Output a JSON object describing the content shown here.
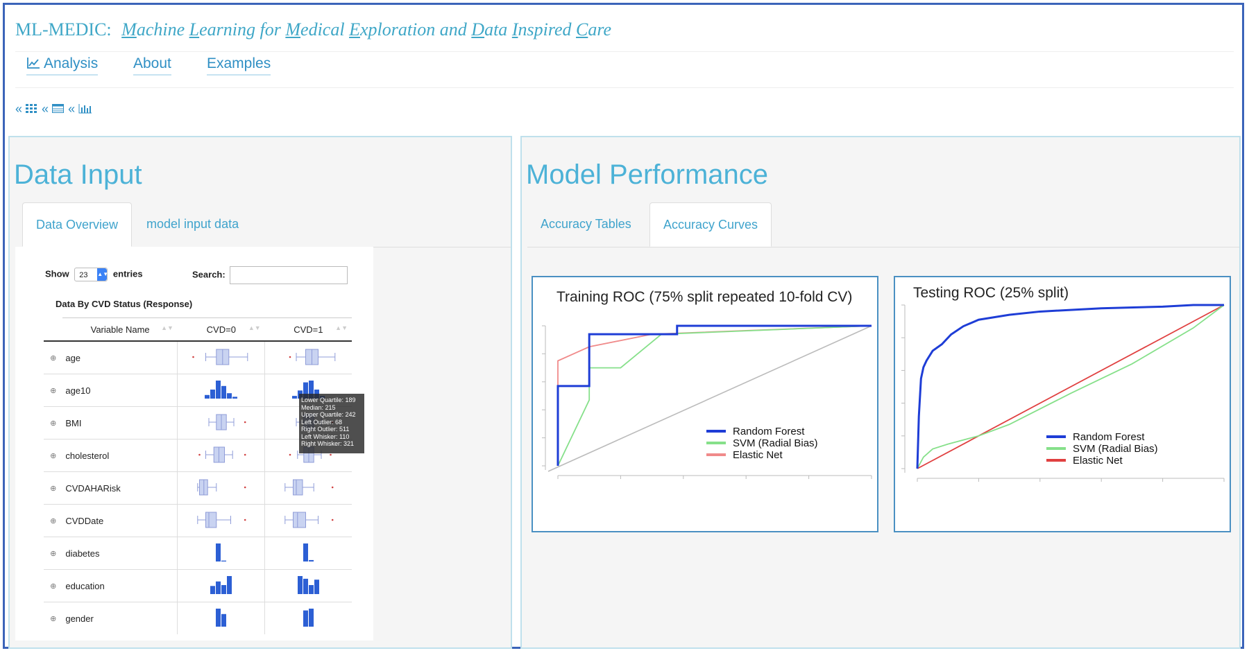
{
  "app": {
    "brand": "ML-MEDIC:",
    "subtitle_words": [
      {
        "initial": "M",
        "rest": "achine"
      },
      {
        "initial": "L",
        "rest": "earning"
      },
      {
        "plain": "for"
      },
      {
        "initial": "M",
        "rest": "edical"
      },
      {
        "initial": "E",
        "rest": "xploration"
      },
      {
        "plain": "and"
      },
      {
        "initial": "D",
        "rest": "ata"
      },
      {
        "initial": "I",
        "rest": "nspired"
      },
      {
        "initial": "C",
        "rest": "are"
      }
    ]
  },
  "nav": {
    "analysis": "Analysis",
    "about": "About",
    "examples": "Examples",
    "analysis_icon": "line-chart-icon"
  },
  "crumbs": {
    "sep": "«",
    "icons": [
      "grid-icon",
      "table-icon",
      "bar-chart-icon"
    ]
  },
  "left_panel": {
    "title": "Data Input",
    "tabs": [
      {
        "label": "Data Overview",
        "active": true
      },
      {
        "label": "model input data",
        "active": false
      }
    ],
    "show_label": "Show",
    "show_value": "23",
    "entries_label": "entries",
    "search_label": "Search:",
    "caption": "Data By CVD Status (Response)",
    "columns": [
      "Variable Name",
      "CVD=0",
      "CVD=1"
    ],
    "rows": [
      {
        "name": "age",
        "kind": "box",
        "cvd0": {
          "wl": 0.25,
          "q1": 0.42,
          "med": 0.52,
          "q3": 0.62,
          "wr": 0.92,
          "out": [
            0.05
          ]
        },
        "cvd1": {
          "wl": 0.3,
          "q1": 0.45,
          "med": 0.55,
          "q3": 0.65,
          "wr": 0.92,
          "out": [
            0.2
          ]
        }
      },
      {
        "name": "age10",
        "kind": "hist",
        "cvd0": [
          0.2,
          0.5,
          1.0,
          0.7,
          0.3,
          0.1
        ],
        "cvd1": [
          0.15,
          0.45,
          0.9,
          1.0,
          0.5,
          0.15
        ]
      },
      {
        "name": "BMI",
        "kind": "box",
        "cvd0": {
          "wl": 0.3,
          "q1": 0.42,
          "med": 0.5,
          "q3": 0.58,
          "wr": 0.7,
          "out": [
            0.88
          ]
        },
        "cvd1": {
          "wl": 0.3,
          "q1": 0.42,
          "med": 0.5,
          "q3": 0.58,
          "wr": 0.7,
          "out": [
            0.88
          ]
        }
      },
      {
        "name": "cholesterol",
        "kind": "box",
        "cvd0": {
          "wl": 0.25,
          "q1": 0.38,
          "med": 0.46,
          "q3": 0.55,
          "wr": 0.68,
          "out": [
            0.15,
            0.88
          ]
        },
        "cvd1": {
          "wl": 0.32,
          "q1": 0.42,
          "med": 0.5,
          "q3": 0.58,
          "wr": 0.7,
          "out": [
            0.2,
            0.85
          ]
        }
      },
      {
        "name": "CVDAHARisk",
        "kind": "box",
        "cvd0": {
          "wl": 0.12,
          "q1": 0.15,
          "med": 0.22,
          "q3": 0.28,
          "wr": 0.42,
          "out": [
            0.88
          ]
        },
        "cvd1": {
          "wl": 0.12,
          "q1": 0.25,
          "med": 0.3,
          "q3": 0.4,
          "wr": 0.58,
          "out": [
            0.88
          ]
        }
      },
      {
        "name": "CVDDate",
        "kind": "box",
        "cvd0": {
          "wl": 0.12,
          "q1": 0.25,
          "med": 0.3,
          "q3": 0.42,
          "wr": 0.65,
          "out": [
            0.88
          ]
        },
        "cvd1": {
          "wl": 0.12,
          "q1": 0.25,
          "med": 0.32,
          "q3": 0.45,
          "wr": 0.65,
          "out": [
            0.88
          ]
        }
      },
      {
        "name": "diabetes",
        "kind": "hist",
        "cvd0": [
          1.0,
          0.05
        ],
        "cvd1": [
          1.0,
          0.08
        ]
      },
      {
        "name": "education",
        "kind": "hist",
        "cvd0": [
          0.45,
          0.7,
          0.5,
          1.0
        ],
        "cvd1": [
          1.0,
          0.85,
          0.5,
          0.8
        ]
      },
      {
        "name": "gender",
        "kind": "hist",
        "cvd0": [
          1.0,
          0.7
        ],
        "cvd1": [
          0.9,
          1.0
        ]
      }
    ],
    "tooltip_lines": [
      "Lower Quartile: 189",
      "Median: 215",
      "Upper Quartile: 242",
      "Left Outlier: 68",
      "Right Outlier: 511",
      "Left Whisker: 110",
      "Right Whisker: 321"
    ],
    "colors": {
      "box_fill": "#c9d3f1",
      "box_stroke": "#8f9cd8",
      "bar": "#2c5fd4",
      "outlier": "#d04040"
    }
  },
  "right_panel": {
    "title": "Model Performance",
    "tabs": [
      {
        "label": "Accuracy Tables",
        "active": false
      },
      {
        "label": "Accuracy Curves",
        "active": true
      }
    ]
  },
  "chart_data": [
    {
      "type": "line",
      "title": "Training ROC (75% split repeated 10-fold CV)",
      "xlabel": "",
      "ylabel": "",
      "xlim": [
        0,
        1
      ],
      "ylim": [
        0,
        1
      ],
      "legend_position": "bottom-right",
      "series": [
        {
          "name": "Random Forest",
          "color": "#1e3dd6",
          "x": [
            0,
            0,
            0.1,
            0.1,
            0.38,
            0.38,
            1
          ],
          "y": [
            0,
            0.57,
            0.57,
            0.94,
            0.94,
            1.0,
            1.0
          ]
        },
        {
          "name": "SVM (Radial Bias)",
          "color": "#86e08a",
          "x": [
            0,
            0.1,
            0.1,
            0.2,
            0.33,
            1
          ],
          "y": [
            0,
            0.47,
            0.7,
            0.7,
            0.94,
            1.0
          ]
        },
        {
          "name": "Elastic Net",
          "color": "#f08a8a",
          "x": [
            0,
            0,
            0.1,
            0.3,
            1
          ],
          "y": [
            0,
            0.75,
            0.85,
            0.94,
            1.0
          ]
        }
      ],
      "reference_line": {
        "color": "#bbbbbb",
        "x": [
          0,
          1
        ],
        "y": [
          0,
          1
        ]
      }
    },
    {
      "type": "line",
      "title": "Testing ROC (25% split)",
      "xlabel": "",
      "ylabel": "",
      "xlim": [
        0,
        1
      ],
      "ylim": [
        0,
        1
      ],
      "legend_position": "bottom-right",
      "series": [
        {
          "name": "Random Forest",
          "color": "#1e3dd6",
          "x": [
            0,
            0.005,
            0.012,
            0.02,
            0.03,
            0.05,
            0.08,
            0.11,
            0.15,
            0.2,
            0.3,
            0.4,
            0.6,
            0.8,
            0.9,
            1
          ],
          "y": [
            0,
            0.32,
            0.55,
            0.62,
            0.66,
            0.72,
            0.76,
            0.82,
            0.87,
            0.91,
            0.94,
            0.96,
            0.98,
            0.99,
            1.0,
            1.0
          ]
        },
        {
          "name": "SVM (Radial Bias)",
          "color": "#86e08a",
          "x": [
            0,
            0.02,
            0.05,
            0.1,
            0.2,
            0.3,
            0.5,
            0.7,
            0.9,
            1
          ],
          "y": [
            0,
            0.07,
            0.12,
            0.15,
            0.2,
            0.27,
            0.46,
            0.64,
            0.86,
            1.0
          ]
        },
        {
          "name": "Elastic Net",
          "color": "#e04040",
          "x": [
            0,
            1
          ],
          "y": [
            0,
            1
          ]
        }
      ]
    }
  ]
}
